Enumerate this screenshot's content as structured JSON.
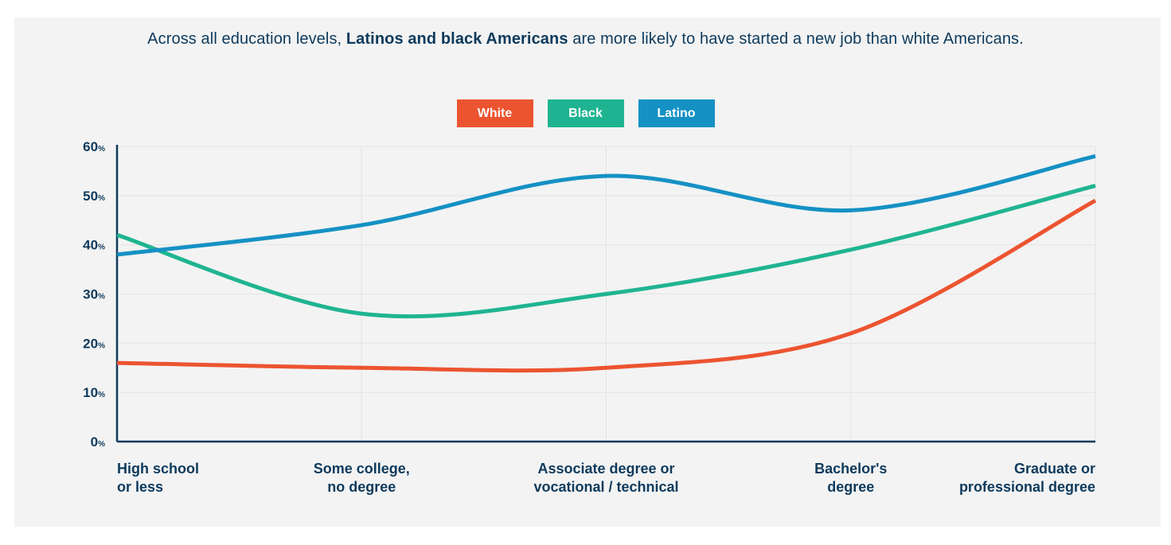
{
  "header": {
    "title_pre": "Across all education levels, ",
    "title_bold": "Latinos and black Americans",
    "title_post": " are more likely to have started a new job than white Americans."
  },
  "colors": {
    "white": "#ec5430",
    "black": "#1fb491",
    "latino": "#1591c4",
    "axis": "#0d3a5c",
    "grid": "#e3e3e3",
    "panel": "#f3f3f3"
  },
  "chart_data": {
    "type": "line",
    "title": "Across all education levels, Latinos and black Americans are more likely to have started a new job than white Americans.",
    "categories": [
      "High school\nor less",
      "Some college,\nno degree",
      "Associate degree or\nvocational / technical",
      "Bachelor's\ndegree",
      "Graduate or\nprofessional degree"
    ],
    "series": [
      {
        "name": "White",
        "color": "#ec5430",
        "values": [
          16,
          15,
          15,
          22,
          49
        ]
      },
      {
        "name": "Black",
        "color": "#1fb491",
        "values": [
          42,
          26,
          30,
          39,
          52
        ]
      },
      {
        "name": "Latino",
        "color": "#1591c4",
        "values": [
          38,
          44,
          54,
          47,
          58
        ]
      }
    ],
    "ylim": [
      0,
      60
    ],
    "yticks": [
      0,
      10,
      20,
      30,
      40,
      50,
      60
    ],
    "ytick_unit": "%",
    "xlabel": "",
    "ylabel": "",
    "grid": true,
    "legend_position": "top-center"
  }
}
